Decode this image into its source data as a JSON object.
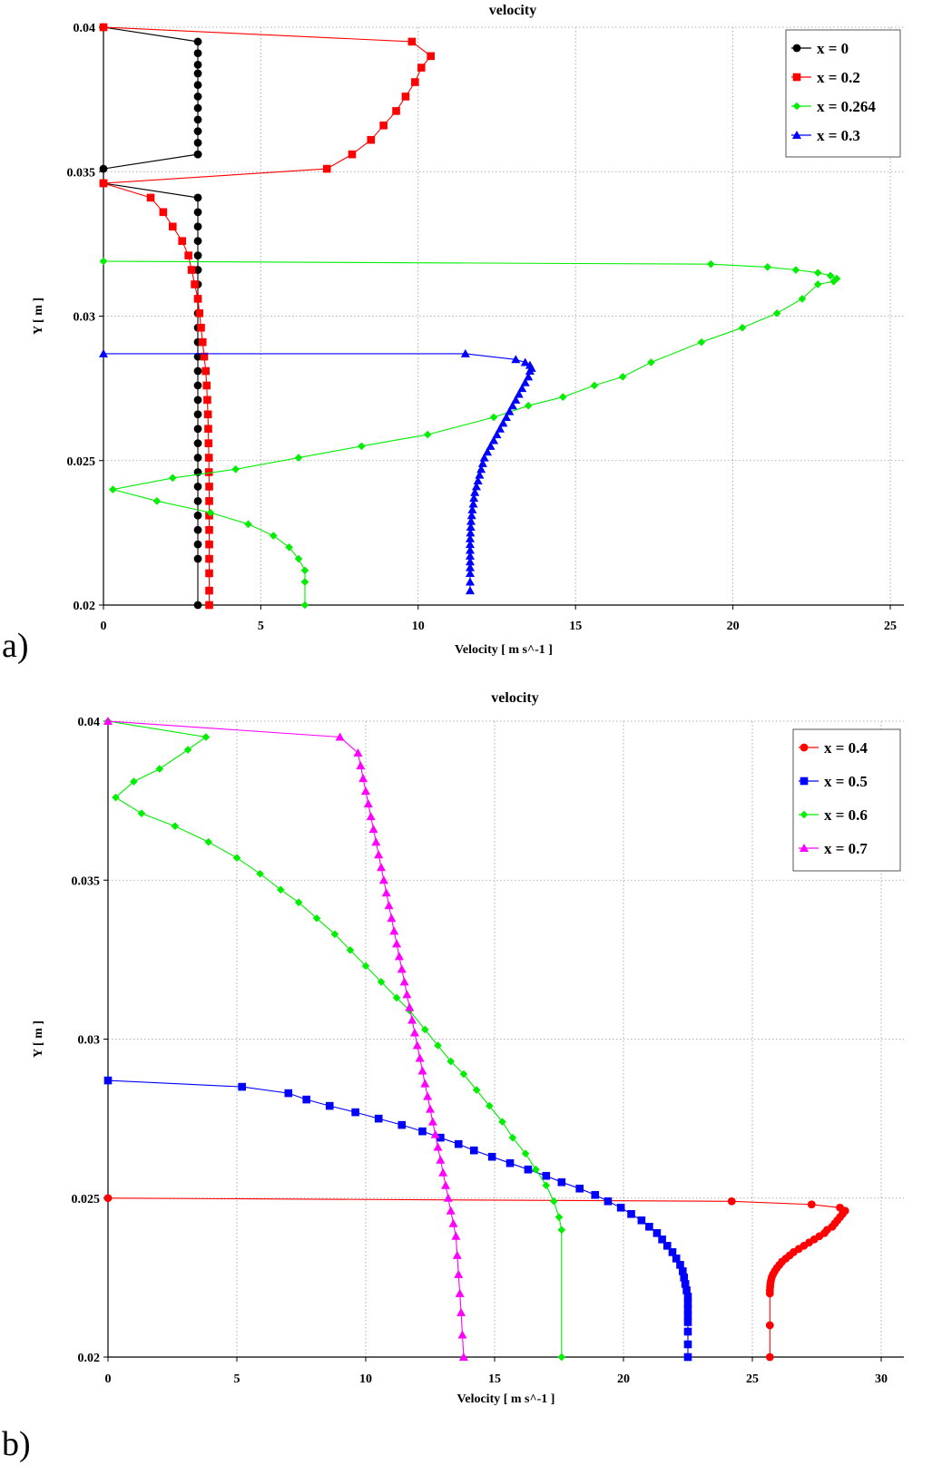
{
  "panel_labels": [
    "a)",
    "b)"
  ],
  "chart_data": [
    {
      "type": "line",
      "title": "velocity",
      "xlabel": "Velocity [ m s^-1 ]",
      "ylabel": "Y [ m ]",
      "xlim": [
        0,
        25
      ],
      "ylim": [
        0.02,
        0.04
      ],
      "xticks": [
        0,
        5,
        10,
        15,
        20,
        25
      ],
      "yticks": [
        0.02,
        0.025,
        0.03,
        0.035,
        0.04
      ],
      "xtick_labels": [
        "0",
        "5",
        "10",
        "15",
        "20",
        "25"
      ],
      "ytick_labels": [
        "0.02",
        "0.025",
        "0.03",
        "0.035",
        "0.04"
      ],
      "grid": true,
      "legend_position": "top-right",
      "series": [
        {
          "name": "x = 0",
          "color": "#000000",
          "marker": "circle",
          "x": [
            0,
            3.0,
            3.0,
            3.0,
            3.0,
            3.0,
            3.0,
            3.0,
            3.0,
            3.0,
            3.0,
            3.0,
            3.0,
            0,
            0,
            3.0,
            3.0,
            3.0,
            3.0,
            3.0,
            3.0,
            3.0,
            3.0,
            3.0,
            3.0,
            3.0,
            3.0,
            3.0,
            3.0,
            3.0,
            3.0,
            3.0,
            3.0,
            3.0,
            3.0,
            3.0,
            3.0,
            3.0,
            3.0,
            3.0,
            3.0,
            3.0
          ],
          "y": [
            0.04,
            0.0395,
            0.0391,
            0.0387,
            0.0384,
            0.038,
            0.0376,
            0.0372,
            0.0368,
            0.0364,
            0.036,
            0.0356,
            0.0356,
            0.0351,
            0.0346,
            0.0341,
            0.0336,
            0.0331,
            0.0326,
            0.0321,
            0.0316,
            0.0311,
            0.0306,
            0.0301,
            0.0296,
            0.0291,
            0.0286,
            0.0281,
            0.0276,
            0.0271,
            0.0266,
            0.0261,
            0.0256,
            0.0251,
            0.0246,
            0.0241,
            0.0236,
            0.0231,
            0.0226,
            0.0221,
            0.0216,
            0.02
          ]
        },
        {
          "name": "x = 0.2",
          "color": "#ff0000",
          "marker": "square",
          "x": [
            0,
            9.8,
            10.4,
            10.1,
            9.9,
            9.6,
            9.3,
            8.9,
            8.5,
            7.9,
            7.1,
            0,
            0,
            1.5,
            1.9,
            2.2,
            2.5,
            2.7,
            2.8,
            2.9,
            3.0,
            3.05,
            3.1,
            3.15,
            3.2,
            3.25,
            3.28,
            3.3,
            3.32,
            3.33,
            3.34,
            3.35,
            3.35,
            3.36,
            3.36,
            3.36,
            3.36,
            3.36,
            3.36,
            3.36,
            3.36,
            3.36
          ],
          "y": [
            0.04,
            0.0395,
            0.039,
            0.0386,
            0.0381,
            0.0376,
            0.0371,
            0.0366,
            0.0361,
            0.0356,
            0.0351,
            0.0346,
            0.0346,
            0.0341,
            0.0336,
            0.0331,
            0.0326,
            0.0321,
            0.0316,
            0.0311,
            0.0306,
            0.0301,
            0.0296,
            0.0291,
            0.0286,
            0.0281,
            0.0276,
            0.0271,
            0.0266,
            0.0261,
            0.0256,
            0.0251,
            0.0246,
            0.0241,
            0.0236,
            0.0231,
            0.0226,
            0.0221,
            0.0216,
            0.0211,
            0.0205,
            0.02
          ]
        },
        {
          "name": "x = 0.264",
          "color": "#00ee00",
          "marker": "diamond",
          "x": [
            0,
            19.3,
            21.1,
            22.0,
            22.7,
            23.1,
            23.3,
            23.2,
            22.7,
            22.2,
            21.4,
            20.3,
            19.0,
            17.4,
            16.5,
            15.6,
            14.6,
            13.5,
            12.4,
            10.3,
            8.2,
            6.2,
            4.2,
            2.2,
            0.3,
            1.7,
            3.4,
            4.6,
            5.4,
            5.9,
            6.2,
            6.4,
            6.4,
            6.4
          ],
          "y": [
            0.0319,
            0.0318,
            0.0317,
            0.0316,
            0.0315,
            0.0314,
            0.0313,
            0.0312,
            0.0311,
            0.0306,
            0.0301,
            0.0296,
            0.0291,
            0.0284,
            0.0279,
            0.0276,
            0.0272,
            0.0269,
            0.0265,
            0.0259,
            0.0255,
            0.0251,
            0.0247,
            0.0244,
            0.024,
            0.0236,
            0.0232,
            0.0228,
            0.0224,
            0.022,
            0.0216,
            0.0212,
            0.0208,
            0.02
          ]
        },
        {
          "name": "x = 0.3",
          "color": "#0000ff",
          "marker": "triangle",
          "x": [
            0,
            11.5,
            13.1,
            13.4,
            13.55,
            13.6,
            13.55,
            13.5,
            13.4,
            13.3,
            13.2,
            13.1,
            13.0,
            12.9,
            12.8,
            12.7,
            12.6,
            12.5,
            12.4,
            12.3,
            12.2,
            12.1,
            12.05,
            12.0,
            11.95,
            11.9,
            11.85,
            11.8,
            11.77,
            11.75,
            11.72,
            11.7,
            11.68,
            11.67,
            11.66,
            11.65,
            11.65,
            11.65,
            11.65,
            11.65,
            11.65,
            11.65,
            11.65,
            11.65
          ],
          "y": [
            0.0287,
            0.0287,
            0.0285,
            0.0284,
            0.0283,
            0.0282,
            0.0281,
            0.0279,
            0.0277,
            0.0275,
            0.0273,
            0.0271,
            0.0269,
            0.0267,
            0.0265,
            0.0263,
            0.0261,
            0.0259,
            0.0257,
            0.0255,
            0.0253,
            0.0251,
            0.0249,
            0.0247,
            0.0245,
            0.0243,
            0.0241,
            0.0239,
            0.0237,
            0.0235,
            0.0233,
            0.0231,
            0.0229,
            0.0227,
            0.0225,
            0.0223,
            0.0221,
            0.0219,
            0.0217,
            0.0215,
            0.0213,
            0.0211,
            0.0208,
            0.0205
          ]
        }
      ]
    },
    {
      "type": "line",
      "title": "velocity",
      "xlabel": "Velocity [ m s^-1 ]",
      "ylabel": "Y [ m ]",
      "xlim": [
        0,
        30
      ],
      "ylim": [
        0.02,
        0.04
      ],
      "xticks": [
        0,
        5,
        10,
        15,
        20,
        25,
        30
      ],
      "yticks": [
        0.02,
        0.025,
        0.03,
        0.035,
        0.04
      ],
      "xtick_labels": [
        "0",
        "5",
        "10",
        "15",
        "20",
        "25",
        "30"
      ],
      "ytick_labels": [
        "0.02",
        "0.025",
        "0.03",
        "0.035",
        "0.04"
      ],
      "grid": true,
      "legend_position": "top-right",
      "series": [
        {
          "name": "x = 0.4",
          "color": "#ff0000",
          "marker": "circle",
          "x": [
            0,
            24.2,
            27.3,
            28.4,
            28.6,
            28.5,
            28.4,
            28.3,
            28.2,
            28.1,
            27.9,
            27.8,
            27.6,
            27.4,
            27.2,
            27.0,
            26.8,
            26.6,
            26.45,
            26.3,
            26.15,
            26.05,
            25.95,
            25.87,
            25.8,
            25.75,
            25.72,
            25.7,
            25.69,
            25.68,
            25.68,
            25.68,
            25.68
          ],
          "y": [
            0.025,
            0.0249,
            0.0248,
            0.0247,
            0.0246,
            0.0245,
            0.0244,
            0.0243,
            0.0242,
            0.0241,
            0.024,
            0.0239,
            0.0238,
            0.0237,
            0.0236,
            0.0235,
            0.0234,
            0.0233,
            0.0232,
            0.0231,
            0.023,
            0.0229,
            0.0228,
            0.0227,
            0.0226,
            0.0225,
            0.0224,
            0.0223,
            0.0222,
            0.0221,
            0.022,
            0.021,
            0.02
          ]
        },
        {
          "name": "x = 0.5",
          "color": "#0000ff",
          "marker": "square",
          "x": [
            0,
            5.2,
            7.0,
            7.7,
            8.6,
            9.6,
            10.5,
            11.4,
            12.2,
            12.9,
            13.6,
            14.2,
            14.9,
            15.6,
            16.3,
            17.0,
            17.6,
            18.3,
            18.9,
            19.4,
            19.9,
            20.3,
            20.7,
            21.0,
            21.3,
            21.5,
            21.7,
            21.9,
            22.05,
            22.2,
            22.3,
            22.35,
            22.4,
            22.45,
            22.5,
            22.5,
            22.5,
            22.5,
            22.5,
            22.5,
            22.5,
            22.5
          ],
          "y": [
            0.0287,
            0.0285,
            0.0283,
            0.0281,
            0.0279,
            0.0277,
            0.0275,
            0.0273,
            0.0271,
            0.0269,
            0.0267,
            0.0265,
            0.0263,
            0.0261,
            0.0259,
            0.0257,
            0.0255,
            0.0253,
            0.0251,
            0.0249,
            0.0247,
            0.0245,
            0.0243,
            0.0241,
            0.0239,
            0.0237,
            0.0235,
            0.0233,
            0.0231,
            0.0229,
            0.0227,
            0.0225,
            0.0223,
            0.0221,
            0.0219,
            0.0217,
            0.0215,
            0.0213,
            0.0211,
            0.0208,
            0.0204,
            0.02
          ]
        },
        {
          "name": "x = 0.6",
          "color": "#00ee00",
          "marker": "diamond",
          "x": [
            0,
            3.8,
            3.1,
            2.0,
            1.0,
            0.3,
            1.3,
            2.6,
            3.9,
            5.0,
            5.9,
            6.7,
            7.4,
            8.1,
            8.8,
            9.4,
            10.0,
            10.6,
            11.2,
            11.7,
            12.3,
            12.8,
            13.3,
            13.8,
            14.3,
            14.8,
            15.3,
            15.7,
            16.2,
            16.6,
            17.0,
            17.3,
            17.5,
            17.6,
            17.6
          ],
          "y": [
            0.04,
            0.0395,
            0.0391,
            0.0385,
            0.0381,
            0.0376,
            0.0371,
            0.0367,
            0.0362,
            0.0357,
            0.0352,
            0.0347,
            0.0343,
            0.0338,
            0.0333,
            0.0328,
            0.0323,
            0.0318,
            0.0313,
            0.0309,
            0.0303,
            0.0298,
            0.0293,
            0.0289,
            0.0284,
            0.0279,
            0.0274,
            0.0269,
            0.0264,
            0.0259,
            0.0254,
            0.0249,
            0.0244,
            0.024,
            0.02
          ]
        },
        {
          "name": "x = 0.7",
          "color": "#ff00ff",
          "marker": "triangle",
          "x": [
            0,
            9.0,
            9.7,
            9.8,
            9.9,
            10.0,
            10.1,
            10.2,
            10.3,
            10.4,
            10.5,
            10.6,
            10.7,
            10.8,
            10.9,
            11.0,
            11.1,
            11.2,
            11.3,
            11.4,
            11.5,
            11.6,
            11.7,
            11.8,
            11.9,
            12.0,
            12.1,
            12.2,
            12.3,
            12.4,
            12.5,
            12.6,
            12.7,
            12.8,
            12.9,
            13.0,
            13.1,
            13.2,
            13.3,
            13.4,
            13.5,
            13.55,
            13.6,
            13.65,
            13.7,
            13.75,
            13.8
          ],
          "y": [
            0.04,
            0.0395,
            0.039,
            0.0386,
            0.0382,
            0.0378,
            0.0374,
            0.037,
            0.0366,
            0.0362,
            0.0358,
            0.0354,
            0.035,
            0.0346,
            0.0342,
            0.0338,
            0.0334,
            0.033,
            0.0326,
            0.0322,
            0.0318,
            0.0314,
            0.031,
            0.0306,
            0.0302,
            0.0298,
            0.0294,
            0.029,
            0.0286,
            0.0282,
            0.0278,
            0.0274,
            0.027,
            0.0266,
            0.0262,
            0.0258,
            0.0254,
            0.025,
            0.0246,
            0.0242,
            0.0238,
            0.0232,
            0.0226,
            0.022,
            0.0214,
            0.0207,
            0.02
          ]
        }
      ]
    }
  ]
}
